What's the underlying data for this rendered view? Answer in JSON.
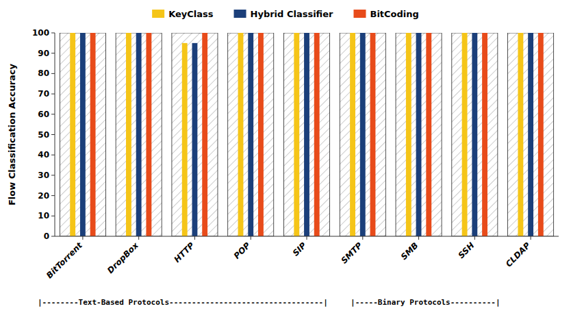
{
  "chart_data": {
    "type": "bar",
    "categories": [
      "BitTorrent",
      "DropBox",
      "HTTP",
      "POP",
      "SIP",
      "SMTP",
      "SMB",
      "SSH",
      "CLDAP"
    ],
    "series": [
      {
        "name": "KeyClass",
        "color": "#F5C518",
        "values": [
          100,
          100,
          95,
          100,
          100,
          100,
          100,
          100,
          100
        ]
      },
      {
        "name": "Hybrid Classifier",
        "color": "#1B3F7A",
        "values": [
          100,
          100,
          95,
          100,
          100,
          100,
          100,
          100,
          100
        ]
      },
      {
        "name": "BitCoding",
        "color": "#E84B1A",
        "values": [
          100,
          100,
          100,
          100,
          100,
          100,
          100,
          100,
          100
        ]
      }
    ],
    "ylabel": "Flow Classification Accuracy",
    "ylim": [
      0,
      100
    ],
    "yticks": [
      0,
      10,
      20,
      30,
      40,
      50,
      60,
      70,
      80,
      90,
      100
    ],
    "legend": "top",
    "annotations": [
      "|--------Text-Based Protocols----------------------------------|",
      "|-----Binary Protocols----------|"
    ]
  }
}
